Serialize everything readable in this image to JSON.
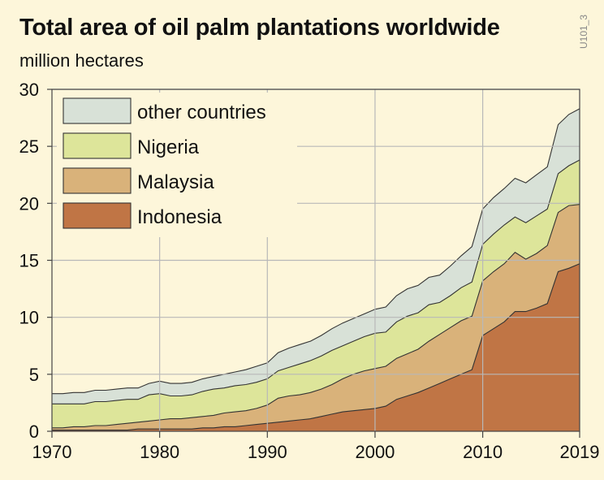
{
  "header": {
    "title": "Total area of oil palm plantations worldwide",
    "unit": "million hectares",
    "code": "U101_3"
  },
  "chart_data": {
    "type": "area",
    "stacked": true,
    "title": "Total area of oil palm plantations worldwide",
    "ylabel": "million hectares",
    "xlim": [
      1970,
      2019
    ],
    "ylim": [
      0,
      30
    ],
    "x_ticks": [
      "1970",
      "1980",
      "1990",
      "2000",
      "2010",
      "2019"
    ],
    "y_ticks": [
      "0",
      "5",
      "10",
      "15",
      "20",
      "25",
      "30"
    ],
    "grid": true,
    "legend_position": "top-left",
    "x": [
      1970,
      1971,
      1972,
      1973,
      1974,
      1975,
      1976,
      1977,
      1978,
      1979,
      1980,
      1981,
      1982,
      1983,
      1984,
      1985,
      1986,
      1987,
      1988,
      1989,
      1990,
      1991,
      1992,
      1993,
      1994,
      1995,
      1996,
      1997,
      1998,
      1999,
      2000,
      2001,
      2002,
      2003,
      2004,
      2005,
      2006,
      2007,
      2008,
      2009,
      2010,
      2011,
      2012,
      2013,
      2014,
      2015,
      2016,
      2017,
      2018,
      2019
    ],
    "series": [
      {
        "name": "Indonesia",
        "color": "#c07545",
        "values": [
          0.1,
          0.1,
          0.1,
          0.1,
          0.1,
          0.1,
          0.1,
          0.1,
          0.2,
          0.2,
          0.2,
          0.2,
          0.2,
          0.2,
          0.3,
          0.3,
          0.4,
          0.4,
          0.5,
          0.6,
          0.7,
          0.8,
          0.9,
          1.0,
          1.1,
          1.3,
          1.5,
          1.7,
          1.8,
          1.9,
          2.0,
          2.2,
          2.8,
          3.1,
          3.4,
          3.8,
          4.2,
          4.6,
          5.0,
          5.4,
          8.4,
          9.0,
          9.6,
          10.5,
          10.5,
          10.8,
          11.2,
          14.0,
          14.3,
          14.7
        ]
      },
      {
        "name": "Malaysia",
        "color": "#d9b27a",
        "values": [
          0.2,
          0.2,
          0.3,
          0.3,
          0.4,
          0.4,
          0.5,
          0.6,
          0.6,
          0.7,
          0.8,
          0.9,
          0.9,
          1.0,
          1.0,
          1.1,
          1.2,
          1.3,
          1.3,
          1.4,
          1.6,
          2.1,
          2.2,
          2.2,
          2.3,
          2.4,
          2.6,
          2.9,
          3.2,
          3.4,
          3.5,
          3.5,
          3.6,
          3.7,
          3.8,
          4.1,
          4.3,
          4.5,
          4.7,
          4.7,
          4.8,
          5.0,
          5.1,
          5.2,
          4.6,
          4.8,
          5.1,
          5.2,
          5.5,
          5.2
        ]
      },
      {
        "name": "Nigeria",
        "color": "#dde59a",
        "values": [
          2.1,
          2.1,
          2.0,
          2.0,
          2.1,
          2.1,
          2.1,
          2.1,
          2.0,
          2.3,
          2.3,
          2.0,
          2.0,
          2.0,
          2.2,
          2.3,
          2.2,
          2.3,
          2.3,
          2.3,
          2.3,
          2.4,
          2.5,
          2.7,
          2.8,
          2.9,
          3.0,
          2.9,
          2.9,
          3.0,
          3.1,
          3.0,
          3.2,
          3.3,
          3.2,
          3.2,
          2.8,
          2.8,
          2.9,
          3.0,
          3.2,
          3.3,
          3.4,
          3.1,
          3.2,
          3.3,
          3.2,
          3.4,
          3.5,
          3.9
        ]
      },
      {
        "name": "other countries",
        "color": "#d8e1d7",
        "values": [
          0.9,
          0.9,
          1.0,
          1.0,
          1.0,
          1.0,
          1.0,
          1.0,
          1.0,
          1.0,
          1.1,
          1.1,
          1.1,
          1.1,
          1.1,
          1.1,
          1.2,
          1.2,
          1.3,
          1.4,
          1.4,
          1.6,
          1.7,
          1.7,
          1.7,
          1.8,
          1.9,
          2.0,
          2.0,
          2.0,
          2.1,
          2.2,
          2.3,
          2.4,
          2.4,
          2.4,
          2.4,
          2.6,
          2.8,
          3.1,
          3.1,
          3.2,
          3.2,
          3.4,
          3.5,
          3.6,
          3.7,
          4.3,
          4.5,
          4.5
        ]
      }
    ]
  }
}
